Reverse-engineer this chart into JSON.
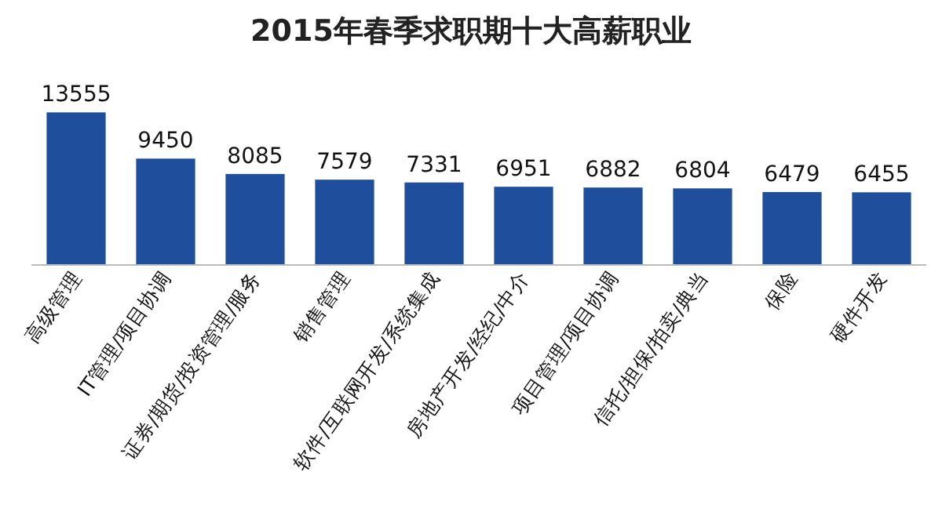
{
  "chart_data": {
    "type": "bar",
    "title": "2015年春季求职期十大高薪职业",
    "categories": [
      "高级管理",
      "IT管理/项目协调",
      "证券/期货/投资管理/服务",
      "销售管理",
      "软件/互联网开发/系统集成",
      "房地产开发/经纪/中介",
      "项目管理/项目协调",
      "信托/担保/拍卖/典当",
      "保险",
      "硬件开发"
    ],
    "values": [
      13555,
      9450,
      8085,
      7579,
      7331,
      6951,
      6882,
      6804,
      6479,
      6455
    ],
    "color": "#1f4e9c",
    "data_labels": true
  }
}
